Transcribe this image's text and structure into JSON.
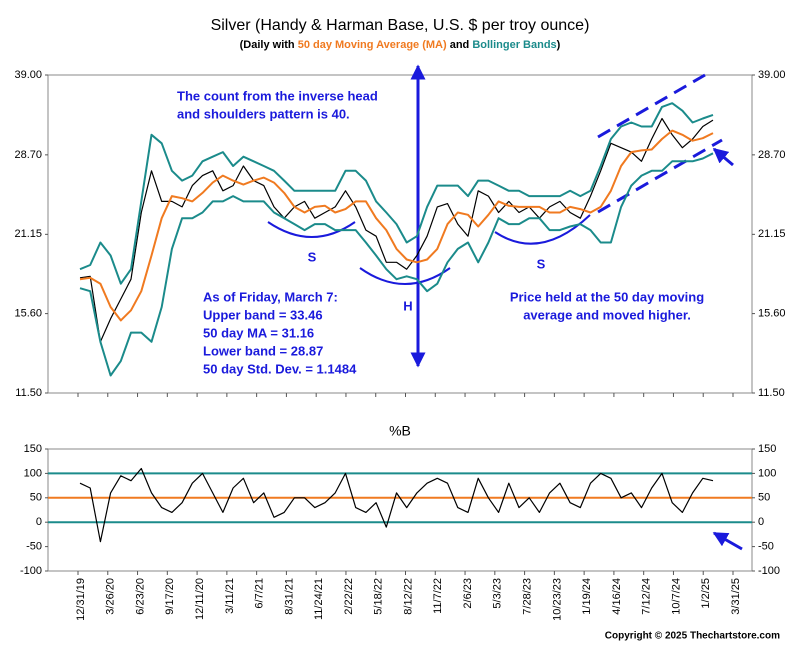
{
  "chart_data": [
    {
      "type": "line",
      "title": "Silver (Handy & Harman Base, U.S. $ per troy ounce)",
      "subtitle": [
        {
          "text": "(Daily with ",
          "color": "#000000"
        },
        {
          "text": "50 day Moving Average (MA)",
          "color": "#f07a20"
        },
        {
          "text": " and ",
          "color": "#000000"
        },
        {
          "text": "Bollinger Bands",
          "color": "#1b8b8b"
        },
        {
          "text": ")",
          "color": "#000000"
        }
      ],
      "log_scale": true,
      "ylim": [
        11.5,
        39
      ],
      "yticks": [
        {
          "value": 11.5,
          "label": "11.50"
        },
        {
          "value": 15.6,
          "label": "15.60"
        },
        {
          "value": 21.15,
          "label": "21.15"
        },
        {
          "value": 28.7,
          "label": "28.70"
        },
        {
          "value": 39,
          "label": "39.00"
        }
      ],
      "series": [
        {
          "color": "#000000",
          "values": [
            17.9,
            18.0,
            14,
            15.3,
            16.5,
            17.8,
            23,
            27,
            24,
            24,
            23.5,
            25.5,
            26.5,
            27,
            25,
            25.5,
            27.5,
            26,
            25.5,
            23.5,
            22.5,
            23.5,
            24,
            22.5,
            23,
            23.5,
            25,
            23.5,
            21.5,
            21,
            19,
            19,
            18.5,
            19.5,
            21,
            23.5,
            23.8,
            22,
            21,
            25,
            24.5,
            23,
            24,
            23,
            23.5,
            22.5,
            23.5,
            24,
            23,
            22.5,
            24.5,
            27,
            30,
            29.5,
            29,
            28,
            30.5,
            33,
            31,
            29.5,
            30.5,
            32,
            32.8
          ]
        },
        {
          "color": "#1b8b8b",
          "values": [
            18.5,
            18.8,
            20.5,
            19.5,
            17.5,
            18.5,
            24,
            31,
            30,
            27,
            26,
            26.5,
            28,
            28.5,
            29,
            27.5,
            28.5,
            28,
            27.5,
            27,
            26,
            25,
            25,
            25,
            25,
            25,
            27,
            27,
            26,
            24,
            23,
            22,
            20.5,
            21,
            23.5,
            25.5,
            25.5,
            25.5,
            24.5,
            26,
            26,
            25.5,
            25,
            25,
            24.5,
            24.5,
            24.5,
            24.5,
            25,
            24.5,
            25,
            27.5,
            30.5,
            32,
            32.5,
            32,
            32,
            34.5,
            35,
            34,
            32.5,
            33,
            33.46
          ]
        },
        {
          "color": "#1b8b8b",
          "values": [
            17.2,
            17,
            14,
            12.3,
            13,
            14.5,
            14.5,
            14,
            16,
            20,
            22.5,
            22.5,
            23,
            24,
            24,
            24.5,
            24,
            24,
            24,
            23,
            22.5,
            22,
            21.5,
            22,
            22,
            21.5,
            21.5,
            21.5,
            20.5,
            19.5,
            18.5,
            17.8,
            18,
            17.8,
            17,
            17.5,
            19,
            20,
            20.5,
            19,
            20.5,
            22.5,
            22,
            22,
            22.5,
            22.5,
            21.5,
            21.5,
            21.8,
            22,
            21.5,
            20.5,
            20.5,
            23.5,
            25.5,
            26.5,
            27,
            27,
            28,
            28,
            28,
            28.3,
            28.87
          ]
        },
        {
          "color": "#f07a20",
          "values": [
            17.8,
            17.9,
            17.5,
            16,
            15.2,
            15.8,
            17,
            19.5,
            22.5,
            24.5,
            24.3,
            24,
            24.8,
            25.8,
            26.5,
            26,
            25.6,
            26,
            26.3,
            25.8,
            24.8,
            23.5,
            23,
            23.5,
            23.6,
            23,
            23.3,
            24,
            24,
            22.5,
            21.5,
            20,
            19.2,
            19,
            19.2,
            20,
            22,
            23,
            22.8,
            21.8,
            22.8,
            24,
            23.6,
            23.5,
            23.5,
            23.5,
            23,
            23,
            23.5,
            23.3,
            23,
            23.5,
            25,
            27.5,
            29,
            29.2,
            29.3,
            30.5,
            31.5,
            31,
            30.3,
            30.6,
            31.2
          ]
        }
      ],
      "annotations": [
        {
          "lines": [
            "The count from the inverse head",
            "and shoulders pattern is 40."
          ]
        },
        {
          "lines": [
            "As of Friday, March 7:",
            "Upper band = 33.46",
            "50 day MA = 31.16",
            "Lower band = 28.87",
            "50 day Std. Dev. = 1.1484"
          ]
        },
        {
          "lines": [
            "Price held at the 50 day moving",
            "average and moved higher."
          ]
        },
        {
          "lines": [
            "S"
          ]
        },
        {
          "lines": [
            "H"
          ]
        },
        {
          "lines": [
            "S"
          ]
        }
      ]
    },
    {
      "type": "line",
      "title": "%B",
      "ylim": [
        -100,
        150
      ],
      "yticks": [
        -100,
        -50,
        0,
        50,
        100,
        150
      ],
      "reference_lines": [
        {
          "value": 100,
          "color": "#1b8b8b"
        },
        {
          "value": 50,
          "color": "#f07a20"
        },
        {
          "value": 0,
          "color": "#1b8b8b"
        }
      ],
      "series": [
        {
          "color": "#000000",
          "values": [
            80,
            70,
            -40,
            60,
            95,
            85,
            110,
            60,
            30,
            20,
            40,
            80,
            100,
            60,
            20,
            70,
            90,
            40,
            60,
            10,
            20,
            50,
            50,
            30,
            40,
            60,
            100,
            30,
            20,
            40,
            -10,
            60,
            30,
            60,
            80,
            90,
            80,
            30,
            20,
            90,
            50,
            20,
            80,
            30,
            50,
            20,
            60,
            80,
            40,
            30,
            80,
            100,
            90,
            50,
            60,
            30,
            70,
            100,
            40,
            20,
            60,
            90,
            85
          ]
        }
      ],
      "xticks": [
        "12/31/19",
        "3/26/20",
        "6/23/20",
        "9/17/20",
        "12/11/20",
        "3/11/21",
        "6/7/21",
        "8/31/21",
        "11/24/21",
        "2/22/22",
        "5/18/22",
        "8/12/22",
        "11/7/22",
        "2/6/23",
        "5/3/23",
        "7/28/23",
        "10/23/23",
        "1/19/24",
        "4/16/24",
        "7/12/24",
        "10/7/24",
        "1/2/25",
        "3/31/25"
      ],
      "footer": "Copyright © 2025 Thechartstore.com"
    }
  ]
}
